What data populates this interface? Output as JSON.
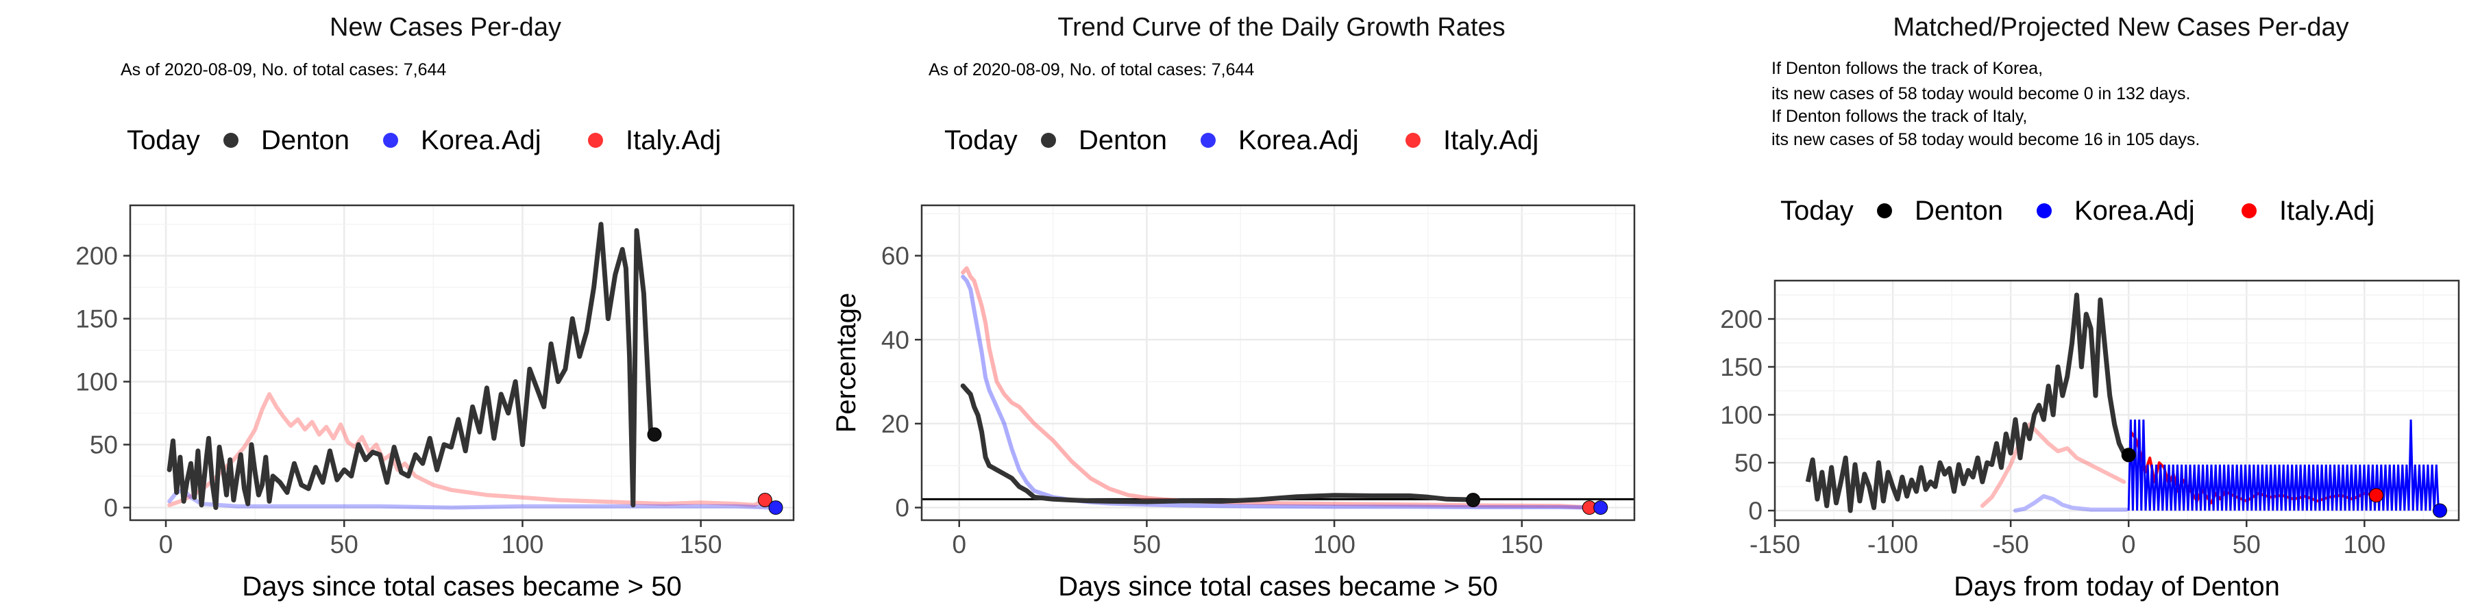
{
  "chart_data": [
    {
      "type": "line",
      "title": "New Cases Per-day",
      "subtitle": [
        "As of 2020-08-09, No. of total cases: 7,644"
      ],
      "xlabel": "Days since total cases became > 50",
      "ylabel": "",
      "xlim": [
        -10,
        176
      ],
      "ylim": [
        -10,
        240
      ],
      "xticks": [
        0,
        50,
        100,
        150
      ],
      "yticks": [
        0,
        50,
        100,
        150,
        200
      ],
      "legend": {
        "title": "Today",
        "position": "top",
        "items": [
          "Denton",
          "Korea.Adj",
          "Italy.Adj"
        ]
      },
      "grid": true,
      "series": [
        {
          "name": "Italy.Adj",
          "color": "#ff6666",
          "opacity": 0.45,
          "x": [
            1,
            4,
            7,
            10,
            13,
            16,
            19,
            22,
            25,
            27,
            29,
            31,
            33,
            35,
            37,
            39,
            41,
            43,
            45,
            47,
            49,
            51,
            53,
            55,
            57,
            59,
            61,
            63,
            65,
            67,
            70,
            75,
            80,
            85,
            90,
            95,
            100,
            110,
            120,
            130,
            140,
            150,
            160,
            165,
            168
          ],
          "y": [
            2,
            5,
            9,
            14,
            21,
            30,
            38,
            48,
            62,
            78,
            90,
            80,
            72,
            65,
            70,
            62,
            68,
            58,
            64,
            55,
            66,
            52,
            48,
            56,
            44,
            50,
            38,
            42,
            30,
            35,
            25,
            18,
            14,
            12,
            10,
            9,
            8,
            6,
            5,
            4,
            3,
            4,
            3,
            2,
            6
          ]
        },
        {
          "name": "Korea.Adj",
          "color": "#3333ff",
          "opacity": 0.35,
          "x": [
            1,
            3,
            5,
            7,
            10,
            15,
            20,
            30,
            40,
            60,
            80,
            100,
            120,
            140,
            160,
            170
          ],
          "y": [
            5,
            12,
            14,
            8,
            3,
            2,
            1,
            1,
            1,
            1,
            0,
            1,
            1,
            1,
            1,
            0
          ]
        },
        {
          "name": "Denton",
          "color": "#333333",
          "opacity": 1,
          "x": [
            1,
            2,
            3,
            4,
            5,
            6,
            7,
            8,
            9,
            10,
            11,
            12,
            13,
            14,
            15,
            16,
            17,
            18,
            19,
            20,
            21,
            22,
            23,
            24,
            25,
            26,
            27,
            28,
            29,
            30,
            32,
            34,
            36,
            38,
            40,
            42,
            44,
            46,
            48,
            50,
            52,
            54,
            56,
            58,
            60,
            62,
            64,
            66,
            68,
            70,
            72,
            74,
            76,
            78,
            80,
            82,
            84,
            86,
            88,
            90,
            92,
            94,
            96,
            98,
            100,
            102,
            104,
            106,
            108,
            110,
            112,
            114,
            116,
            118,
            120,
            122,
            124,
            126,
            128,
            129,
            130,
            131,
            132,
            134,
            136
          ],
          "y": [
            30,
            53,
            12,
            40,
            5,
            22,
            35,
            8,
            45,
            2,
            30,
            55,
            20,
            0,
            48,
            32,
            10,
            38,
            6,
            25,
            42,
            15,
            3,
            50,
            28,
            10,
            18,
            40,
            5,
            25,
            20,
            12,
            35,
            18,
            15,
            32,
            20,
            45,
            22,
            30,
            25,
            50,
            38,
            44,
            42,
            20,
            48,
            28,
            25,
            42,
            35,
            55,
            30,
            50,
            48,
            70,
            45,
            80,
            60,
            95,
            55,
            90,
            75,
            100,
            50,
            110,
            95,
            80,
            130,
            100,
            110,
            150,
            120,
            140,
            175,
            225,
            150,
            185,
            205,
            190,
            120,
            2,
            220,
            170,
            58
          ]
        }
      ],
      "today_points": [
        {
          "name": "Denton",
          "x": 137,
          "y": 58,
          "color": "#111111"
        },
        {
          "name": "Italy.Adj",
          "x": 168,
          "y": 6,
          "color": "#ff3333"
        },
        {
          "name": "Korea.Adj",
          "x": 171,
          "y": 0,
          "color": "#2222ff"
        }
      ]
    },
    {
      "type": "line",
      "title": "Trend Curve of the Daily Growth Rates",
      "subtitle": [
        "As of 2020-08-09, No. of total cases: 7,644"
      ],
      "xlabel": "Days since total cases became > 50",
      "ylabel": "Percentage",
      "xlim": [
        -10,
        180
      ],
      "ylim": [
        -3,
        72
      ],
      "xticks": [
        0,
        50,
        100,
        150
      ],
      "yticks": [
        0,
        20,
        40,
        60
      ],
      "hline": 2,
      "legend": {
        "title": "Today",
        "position": "top",
        "items": [
          "Denton",
          "Korea.Adj",
          "Italy.Adj"
        ]
      },
      "grid": true,
      "series": [
        {
          "name": "Italy.Adj",
          "color": "#ff6666",
          "opacity": 0.5,
          "x": [
            1,
            2,
            3,
            4,
            5,
            6,
            7,
            8,
            9,
            10,
            12,
            14,
            16,
            18,
            20,
            25,
            30,
            35,
            40,
            45,
            50,
            55,
            60,
            70,
            80,
            100,
            120,
            140,
            160,
            168
          ],
          "y": [
            56,
            57,
            55,
            54,
            51,
            48,
            44,
            38,
            34,
            30,
            27,
            25,
            24,
            22,
            20,
            16,
            11,
            7,
            4.5,
            3,
            2.3,
            1.9,
            1.6,
            1.3,
            1.1,
            0.9,
            0.7,
            0.5,
            0.4,
            0
          ]
        },
        {
          "name": "Korea.Adj",
          "color": "#3333ff",
          "opacity": 0.4,
          "x": [
            1,
            2,
            3,
            4,
            5,
            6,
            7,
            8,
            10,
            12,
            14,
            16,
            18,
            20,
            25,
            30,
            35,
            40,
            50,
            60,
            80,
            100,
            120,
            140,
            160,
            170
          ],
          "y": [
            55,
            54,
            52,
            47,
            42,
            37,
            31,
            28,
            24,
            20,
            14,
            9,
            6,
            4,
            2.5,
            1.8,
            1.3,
            1,
            0.7,
            0.5,
            0.3,
            0.2,
            0.2,
            0.1,
            0.1,
            0
          ]
        },
        {
          "name": "Denton",
          "color": "#333333",
          "opacity": 1,
          "x": [
            1,
            2,
            3,
            4,
            5,
            6,
            7,
            8,
            9,
            10,
            12,
            14,
            16,
            18,
            20,
            25,
            30,
            35,
            40,
            50,
            60,
            70,
            80,
            90,
            100,
            110,
            120,
            125,
            130,
            135,
            137
          ],
          "y": [
            29,
            28,
            27,
            24,
            22,
            18,
            12,
            10,
            9.5,
            9,
            8,
            7,
            5,
            4,
            2.5,
            2,
            1.8,
            1.6,
            1.5,
            1.4,
            1.6,
            1.5,
            1.9,
            2.6,
            2.9,
            2.8,
            2.8,
            2.5,
            2.0,
            1.9,
            1.8
          ]
        }
      ],
      "today_points": [
        {
          "name": "Denton",
          "x": 137,
          "y": 1.8,
          "color": "#111111"
        },
        {
          "name": "Italy.Adj",
          "x": 168,
          "y": 0,
          "color": "#ff3333"
        },
        {
          "name": "Korea.Adj",
          "x": 171,
          "y": 0,
          "color": "#2222ff"
        }
      ]
    },
    {
      "type": "line",
      "title": "Matched/Projected New Cases Per-day",
      "subtitle": [
        "If Denton follows the track of Korea,",
        "its new cases of 58 today would become 0 in 132 days.",
        "If Denton follows the track of Italy,",
        "its new cases of 58 today would become 16 in 105 days."
      ],
      "xlabel": "Days from today of Denton",
      "ylabel": "",
      "xlim": [
        -150,
        140
      ],
      "ylim": [
        -10,
        240
      ],
      "xticks": [
        -150,
        -100,
        -50,
        0,
        50,
        100
      ],
      "yticks": [
        0,
        50,
        100,
        150,
        200
      ],
      "legend": {
        "title": "Today",
        "position": "top",
        "items": [
          "Denton",
          "Korea.Adj",
          "Italy.Adj"
        ]
      },
      "grid": true,
      "series": [
        {
          "name": "Italy.Adj",
          "color": "#ff6666",
          "opacity": 0.45,
          "x": [
            -62,
            -58,
            -54,
            -50,
            -46,
            -42,
            -38,
            -34,
            -30,
            -26,
            -22,
            -18,
            -14,
            -10,
            -6,
            -2
          ],
          "y": [
            5,
            14,
            30,
            48,
            72,
            90,
            80,
            70,
            62,
            65,
            55,
            50,
            45,
            40,
            35,
            30
          ]
        },
        {
          "name": "Korea.Adj",
          "color": "#3333ff",
          "opacity": 0.35,
          "x": [
            -48,
            -44,
            -40,
            -36,
            -32,
            -28,
            -24,
            -20,
            -16,
            -12,
            -8,
            -4,
            -1
          ],
          "y": [
            0,
            2,
            8,
            15,
            12,
            6,
            3,
            2,
            1,
            1,
            1,
            1,
            1
          ]
        },
        {
          "name": "Italy.Adj",
          "color": "#ff0000",
          "opacity": 1,
          "x": [
            1,
            3,
            5,
            7,
            9,
            11,
            13,
            15,
            17,
            19,
            21,
            23,
            25,
            27,
            29,
            31,
            33,
            35,
            37,
            39,
            41,
            45,
            50,
            55,
            60,
            65,
            70,
            75,
            80,
            85,
            90,
            95,
            100,
            105
          ],
          "y": [
            82,
            75,
            60,
            40,
            55,
            30,
            50,
            45,
            28,
            38,
            20,
            32,
            25,
            18,
            10,
            22,
            15,
            8,
            18,
            12,
            20,
            15,
            10,
            18,
            14,
            16,
            12,
            15,
            10,
            14,
            16,
            12,
            18,
            16
          ]
        },
        {
          "name": "Korea.Adj",
          "color": "#0000ff",
          "opacity": 1,
          "pattern": "zigzag",
          "x": [
            0,
            132
          ],
          "low": 0,
          "high": 48,
          "peak": {
            "x": 120,
            "y": 95
          }
        }
      ],
      "denton_history": {
        "x": [
          -136,
          -134,
          -132,
          -130,
          -128,
          -126,
          -124,
          -122,
          -120,
          -118,
          -116,
          -114,
          -112,
          -110,
          -108,
          -106,
          -104,
          -102,
          -100,
          -98,
          -96,
          -94,
          -92,
          -90,
          -88,
          -86,
          -84,
          -82,
          -80,
          -78,
          -76,
          -74,
          -72,
          -70,
          -68,
          -66,
          -64,
          -62,
          -60,
          -58,
          -56,
          -54,
          -52,
          -50,
          -48,
          -46,
          -44,
          -42,
          -40,
          -38,
          -36,
          -34,
          -32,
          -30,
          -28,
          -26,
          -24,
          -22,
          -20,
          -18,
          -16,
          -14,
          -12,
          -10,
          -8,
          -6,
          -4,
          -2,
          0
        ],
        "y": [
          30,
          53,
          12,
          40,
          5,
          45,
          8,
          30,
          55,
          0,
          48,
          10,
          38,
          25,
          3,
          50,
          10,
          40,
          25,
          12,
          35,
          15,
          32,
          20,
          45,
          22,
          30,
          25,
          50,
          38,
          44,
          20,
          48,
          28,
          42,
          35,
          55,
          30,
          50,
          48,
          70,
          45,
          80,
          60,
          95,
          55,
          90,
          75,
          100,
          110,
          95,
          130,
          100,
          150,
          120,
          140,
          175,
          225,
          150,
          205,
          190,
          120,
          220,
          170,
          120,
          90,
          70,
          60,
          58
        ]
      },
      "today_points": [
        {
          "name": "Denton",
          "x": 0,
          "y": 58,
          "color": "#000000"
        },
        {
          "name": "Italy.Adj",
          "x": 105,
          "y": 16,
          "color": "#ff0000"
        },
        {
          "name": "Korea.Adj",
          "x": 132,
          "y": 0,
          "color": "#0000ff"
        }
      ]
    }
  ]
}
